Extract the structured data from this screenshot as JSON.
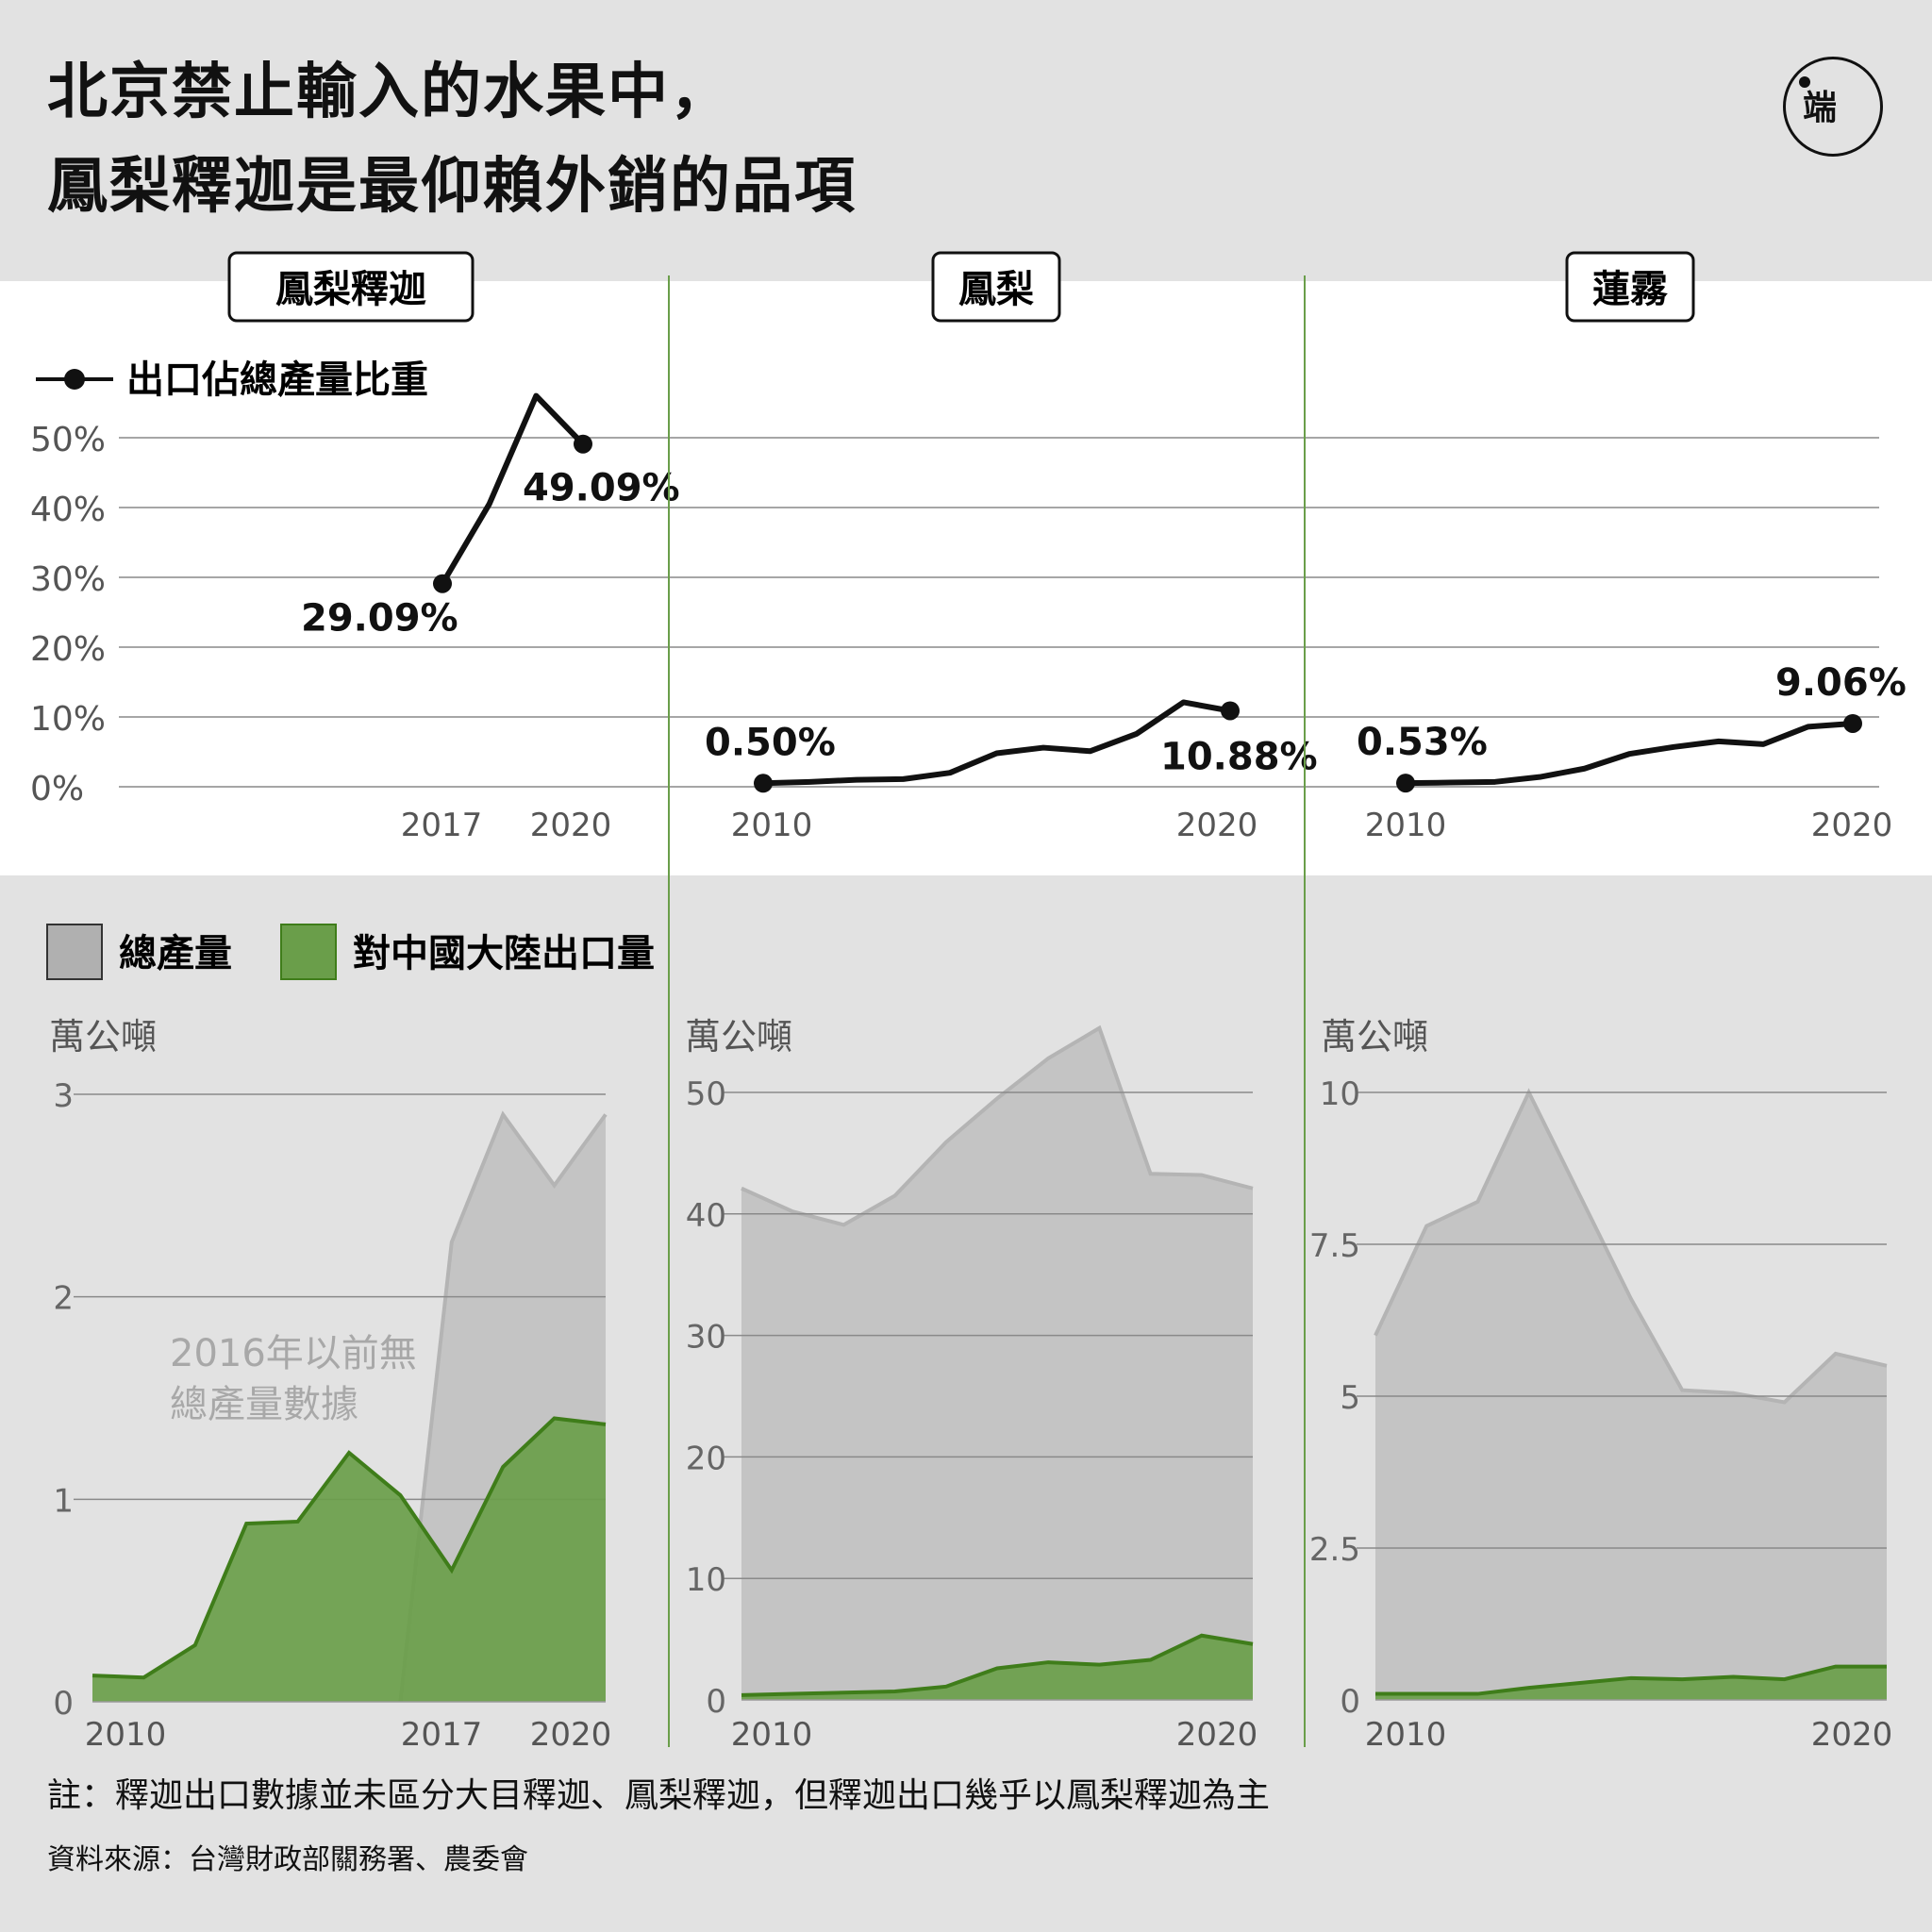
{
  "title": {
    "line1": "北京禁止輸入的水果中，",
    "line2": "鳳梨釋迦是最仰賴外銷的品項"
  },
  "logo_text": "端",
  "legend": {
    "ratio_label": "出口佔總產量比重",
    "total_label": "總產量",
    "export_label": "對中國大陸出口量"
  },
  "colors": {
    "total_fill": "#c4c4c4",
    "total_stroke": "#b4b4b4",
    "export_fill": "#6a9e4a",
    "export_stroke": "#3f7d1a",
    "divider": "#6a9e4a",
    "grid": "#888888"
  },
  "chart_data": [
    {
      "type": "line",
      "panel": "鳳梨釋迦",
      "title": "鳳梨釋迦",
      "series_name": "出口佔總產量比重",
      "x": [
        2017,
        2018,
        2019,
        2020
      ],
      "values": [
        29.09,
        40.5,
        56,
        49.09
      ],
      "labels": [
        {
          "x": 2017,
          "text": "29.09%"
        },
        {
          "x": 2020,
          "text": "49.09%"
        }
      ],
      "xticks": [
        "2017",
        "2020"
      ],
      "yticks": [
        "0%",
        "10%",
        "20%",
        "30%",
        "40%",
        "50%"
      ],
      "ylim": [
        0,
        50
      ]
    },
    {
      "type": "line",
      "panel": "鳳梨",
      "title": "鳳梨",
      "series_name": "出口佔總產量比重",
      "x": [
        2010,
        2011,
        2012,
        2013,
        2014,
        2015,
        2016,
        2017,
        2018,
        2019,
        2020
      ],
      "values": [
        0.5,
        0.7,
        1.0,
        1.1,
        2.0,
        4.8,
        5.6,
        5.1,
        7.6,
        12.1,
        10.88
      ],
      "labels": [
        {
          "x": 2010,
          "text": "0.50%"
        },
        {
          "x": 2020,
          "text": "10.88%"
        }
      ],
      "xticks": [
        "2010",
        "2020"
      ],
      "ylim": [
        0,
        50
      ]
    },
    {
      "type": "line",
      "panel": "蓮霧",
      "title": "蓮霧",
      "series_name": "出口佔總產量比重",
      "x": [
        2010,
        2011,
        2012,
        2013,
        2014,
        2015,
        2016,
        2017,
        2018,
        2019,
        2020
      ],
      "values": [
        0.53,
        0.6,
        0.7,
        1.4,
        2.6,
        4.7,
        5.7,
        6.5,
        6.1,
        8.6,
        9.06
      ],
      "labels": [
        {
          "x": 2010,
          "text": "0.53%"
        },
        {
          "x": 2020,
          "text": "9.06%"
        }
      ],
      "xticks": [
        "2010",
        "2020"
      ],
      "ylim": [
        0,
        50
      ]
    },
    {
      "type": "area",
      "panel": "鳳梨釋迦",
      "ylabel": "萬公噸",
      "yticks": [
        "0",
        "1",
        "2",
        "3"
      ],
      "ylim": [
        0,
        3
      ],
      "xticks": [
        "2010",
        "2017",
        "2020"
      ],
      "annotation": [
        "2016年以前無",
        "總產量數據"
      ],
      "x": [
        2010,
        2011,
        2012,
        2013,
        2014,
        2015,
        2016,
        2017,
        2018,
        2019,
        2020
      ],
      "series": [
        {
          "name": "總產量",
          "x": [
            2016,
            2017,
            2018,
            2019,
            2020
          ],
          "values": [
            0,
            2.27,
            2.9,
            2.55,
            2.9
          ]
        },
        {
          "name": "對中國大陸出口量",
          "values": [
            0.13,
            0.12,
            0.28,
            0.88,
            0.89,
            1.23,
            1.02,
            0.65,
            1.16,
            1.4,
            1.37
          ]
        }
      ]
    },
    {
      "type": "area",
      "panel": "鳳梨",
      "ylabel": "萬公噸",
      "yticks": [
        "0",
        "10",
        "20",
        "30",
        "40",
        "50"
      ],
      "ylim": [
        0,
        50
      ],
      "xticks": [
        "2010",
        "2020"
      ],
      "x": [
        2010,
        2011,
        2012,
        2013,
        2014,
        2015,
        2016,
        2017,
        2018,
        2019,
        2020
      ],
      "series": [
        {
          "name": "總產量",
          "values": [
            42.1,
            40.2,
            39.1,
            41.5,
            45.9,
            49.5,
            52.8,
            55.3,
            43.3,
            43.2,
            42.1
          ]
        },
        {
          "name": "對中國大陸出口量",
          "values": [
            0.4,
            0.5,
            0.6,
            0.7,
            1.1,
            2.6,
            3.1,
            2.9,
            3.3,
            5.3,
            4.6
          ]
        }
      ]
    },
    {
      "type": "area",
      "panel": "蓮霧",
      "ylabel": "萬公噸",
      "yticks": [
        "0",
        "2.5",
        "5",
        "7.5",
        "10"
      ],
      "ylim": [
        0,
        10
      ],
      "xticks": [
        "2010",
        "2020"
      ],
      "x": [
        2010,
        2011,
        2012,
        2013,
        2014,
        2015,
        2016,
        2017,
        2018,
        2019,
        2020
      ],
      "series": [
        {
          "name": "總產量",
          "values": [
            6.0,
            7.8,
            8.2,
            10.0,
            8.3,
            6.6,
            5.1,
            5.05,
            4.9,
            5.7,
            5.5
          ]
        },
        {
          "name": "對中國大陸出口量",
          "values": [
            0.1,
            0.1,
            0.1,
            0.2,
            0.28,
            0.36,
            0.34,
            0.38,
            0.34,
            0.55,
            0.55
          ]
        }
      ]
    }
  ],
  "note": "註：釋迦出口數據並未區分大目釋迦、鳳梨釋迦，但釋迦出口幾乎以鳳梨釋迦為主",
  "source": "資料來源：台灣財政部關務署、農委會"
}
